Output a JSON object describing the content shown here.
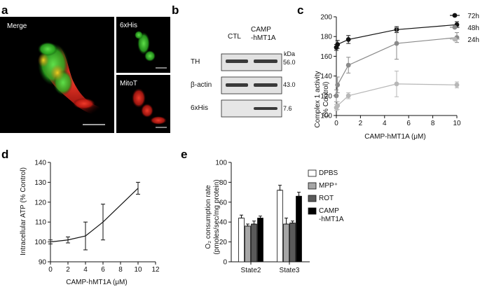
{
  "panel_labels": {
    "a": "a",
    "b": "b",
    "c": "c",
    "d": "d",
    "e": "e"
  },
  "micro": {
    "merge": "Merge",
    "his": "6xHis",
    "mitot": "MitoT"
  },
  "blot": {
    "lane1": "CTL",
    "lane2_line1": "CAMP",
    "lane2_line2": "-hMT1A",
    "kda": "kDa",
    "rows": [
      {
        "name": "TH",
        "mw": "56.0"
      },
      {
        "name": "β-actin",
        "mw": "43.0"
      },
      {
        "name": "6xHis",
        "mw": "7.6"
      }
    ]
  },
  "colors": {
    "s72": "#111111",
    "s48": "#8a8a8a",
    "s24": "#b7b7b7",
    "dpbs": "#ffffff",
    "mpp": "#a6a6a6",
    "rot": "#5a5a5a",
    "camp": "#000000",
    "red": "#e0201a",
    "green": "#36c02a"
  },
  "chart_data": [
    {
      "id": "c",
      "type": "line",
      "xlabel": "CAMP-hMT1A (μM)",
      "ylabel_line1": "Complex 1 activity",
      "ylabel_line2": "(% Control)",
      "xlim": [
        0,
        10
      ],
      "ylim": [
        100,
        200
      ],
      "xticks": [
        0,
        2,
        4,
        6,
        8,
        10
      ],
      "yticks": [
        100,
        120,
        140,
        160,
        180,
        200
      ],
      "x": [
        0,
        0.1,
        1,
        5,
        10
      ],
      "series": [
        {
          "name": "72h",
          "values": [
            169,
            172,
            177,
            187,
            192
          ],
          "err": [
            3,
            4,
            4,
            3,
            3
          ]
        },
        {
          "name": "48h",
          "values": [
            120,
            131,
            151,
            173,
            179
          ],
          "err": [
            6,
            8,
            8,
            16,
            5
          ]
        },
        {
          "name": "24h",
          "values": [
            108,
            110,
            120,
            132,
            131
          ],
          "err": [
            3,
            4,
            3,
            13,
            3
          ]
        }
      ]
    },
    {
      "id": "d",
      "type": "line",
      "xlabel": "CAMP-hMT1A (μM)",
      "ylabel": "Intracellular ATP (% Control)",
      "xlim": [
        0,
        12
      ],
      "ylim": [
        90,
        140
      ],
      "xticks": [
        0,
        2,
        4,
        6,
        8,
        10,
        12
      ],
      "yticks": [
        90,
        100,
        110,
        120,
        130,
        140
      ],
      "x": [
        0,
        2,
        4,
        6,
        10
      ],
      "values": [
        100,
        101,
        103,
        110,
        127
      ],
      "err": [
        1,
        1.5,
        7,
        9,
        3
      ]
    },
    {
      "id": "e",
      "type": "bar",
      "ylabel_line1": "O₂ consumption rate",
      "ylabel_line2": "(pmoles/sec/mg protein)",
      "ylim": [
        0,
        100
      ],
      "yticks": [
        0,
        20,
        40,
        60,
        80,
        100
      ],
      "categories": [
        "State2",
        "State3"
      ],
      "series": [
        {
          "name": "DPBS",
          "values": [
            44,
            72
          ],
          "err": [
            3,
            5
          ]
        },
        {
          "name": "MPP⁺",
          "values": [
            36,
            38
          ],
          "err": [
            2,
            6
          ]
        },
        {
          "name": "ROT",
          "values": [
            38,
            39
          ],
          "err": [
            3,
            2
          ]
        },
        {
          "name_line1": "CAMP",
          "name_line2": "-hMT1A",
          "values": [
            44,
            66
          ],
          "err": [
            2,
            4
          ]
        }
      ]
    }
  ]
}
